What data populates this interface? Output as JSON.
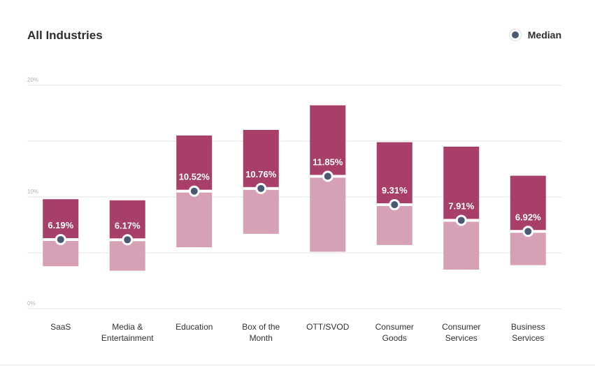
{
  "header": {
    "title": "All Industries"
  },
  "legend": {
    "median_label": "Median"
  },
  "colors": {
    "upper": "#a73f69",
    "lower": "#d6a0b5",
    "median_marker": "#4b5a70",
    "grid": "#e6e6e6"
  },
  "chart_data": {
    "type": "bar",
    "title": "All Industries",
    "ylim": [
      0,
      20
    ],
    "yticks": [
      {
        "value": 0,
        "label": "0%"
      },
      {
        "value": 10,
        "label": "10%"
      },
      {
        "value": 20,
        "label": "20%"
      }
    ],
    "grid_values": [
      0,
      5,
      10,
      15,
      20
    ],
    "grid": true,
    "legend_position": "top-right",
    "categories": [
      [
        "SaaS"
      ],
      [
        "Media &",
        "Entertainment"
      ],
      [
        "Education"
      ],
      [
        "Box of the",
        "Month"
      ],
      [
        "OTT/SVOD"
      ],
      [
        "Consumer",
        "Goods"
      ],
      [
        "Consumer",
        "Services"
      ],
      [
        "Business",
        "Services"
      ]
    ],
    "ranges": [
      {
        "low": 3.8,
        "median": 6.19,
        "high": 9.8,
        "median_label": "6.19%"
      },
      {
        "low": 3.4,
        "median": 6.17,
        "high": 9.7,
        "median_label": "6.17%"
      },
      {
        "low": 5.5,
        "median": 10.52,
        "high": 15.5,
        "median_label": "10.52%"
      },
      {
        "low": 6.7,
        "median": 10.76,
        "high": 16.0,
        "median_label": "10.76%"
      },
      {
        "low": 5.1,
        "median": 11.85,
        "high": 18.2,
        "median_label": "11.85%"
      },
      {
        "low": 5.7,
        "median": 9.31,
        "high": 14.9,
        "median_label": "9.31%"
      },
      {
        "low": 3.5,
        "median": 7.91,
        "high": 14.5,
        "median_label": "7.91%"
      },
      {
        "low": 3.9,
        "median": 6.92,
        "high": 11.9,
        "median_label": "6.92%"
      }
    ]
  }
}
